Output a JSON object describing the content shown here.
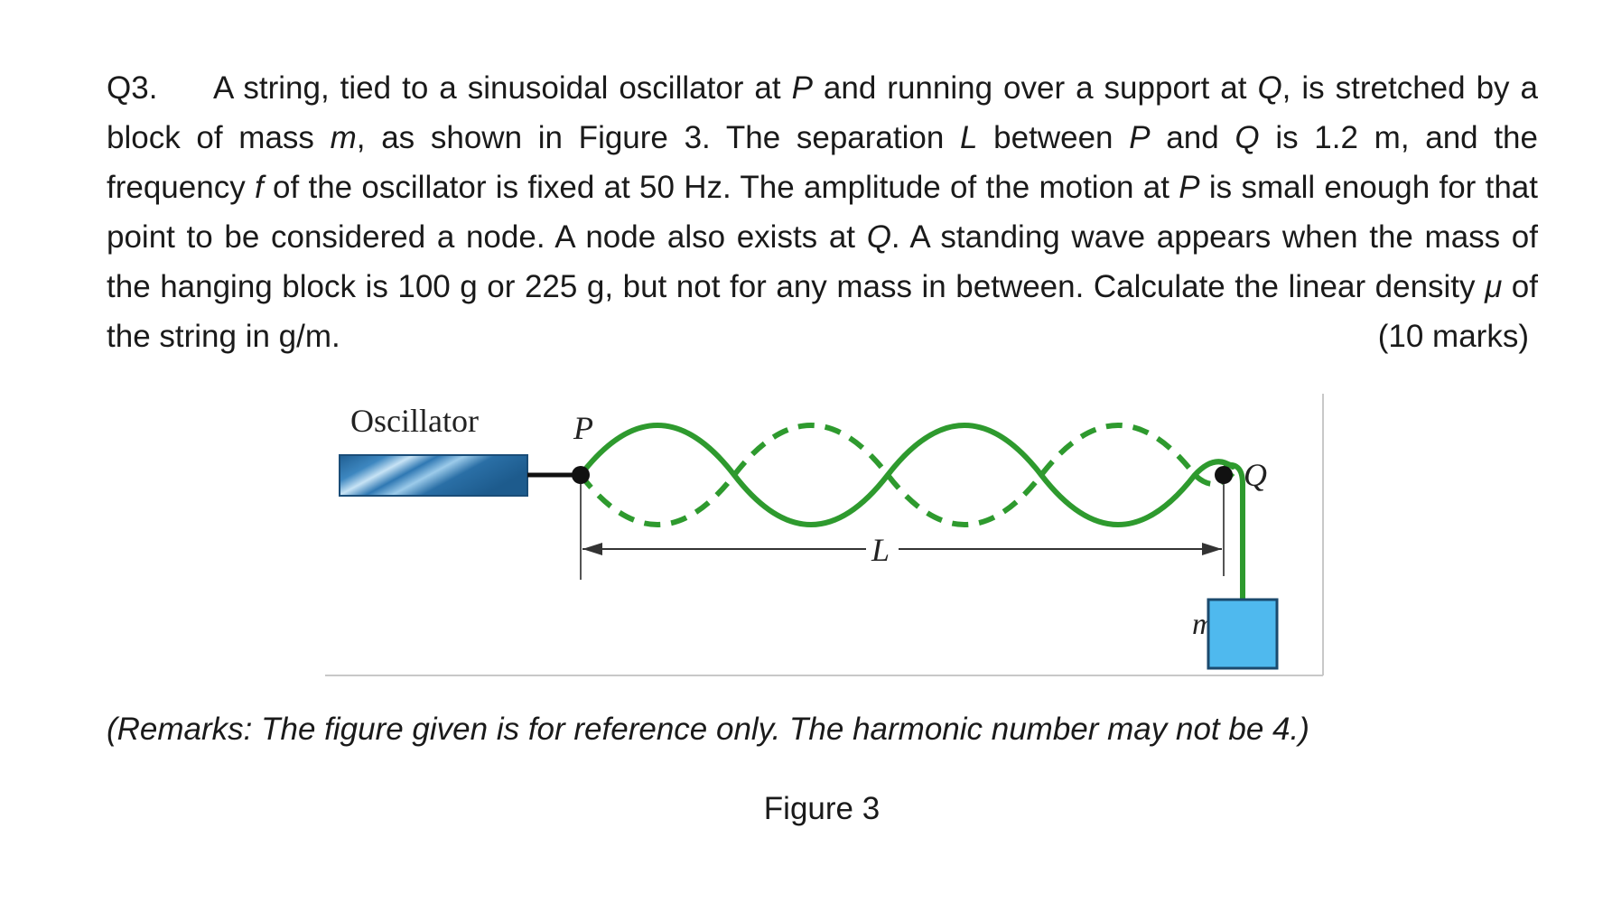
{
  "question": {
    "number": "Q3.",
    "text_1": "A string, tied to a sinusoidal oscillator at ",
    "var_P1": "P",
    "text_2": " and running over a support at ",
    "var_Q1": "Q",
    "text_3": ", is stretched by a block of mass ",
    "var_m": "m",
    "text_4": ", as shown in Figure 3.  The separation ",
    "var_L": "L",
    "text_5": " between ",
    "var_P2": "P",
    "text_6": " and ",
    "var_Q2": "Q",
    "text_7": " is 1.2 m, and the frequency ",
    "var_f": "f",
    "text_8": " of the oscillator is fixed at 50 Hz.  The amplitude of the motion at ",
    "var_P3": "P",
    "text_9": " is small enough for that point to be considered a node.  A node also exists at ",
    "var_Q3": "Q",
    "text_10": ".  A standing wave appears when the mass of the hanging block is 100 g or 225 g, but not for any mass in between.  Calculate the linear density ",
    "var_mu": "μ",
    "text_11": " of the string in g/m.",
    "marks": "(10 marks)"
  },
  "figure": {
    "oscillator_label": "Oscillator",
    "point_P_label": "P",
    "point_Q_label": "Q",
    "length_label": "L",
    "mass_label": "m",
    "colors": {
      "string": "#2e9a2e",
      "block": "#4fb9ee",
      "oscillator": "#2a6fa6"
    }
  },
  "remarks": "(Remarks: The figure given is for reference only.  The harmonic number may not be 4.)",
  "caption": "Figure 3"
}
